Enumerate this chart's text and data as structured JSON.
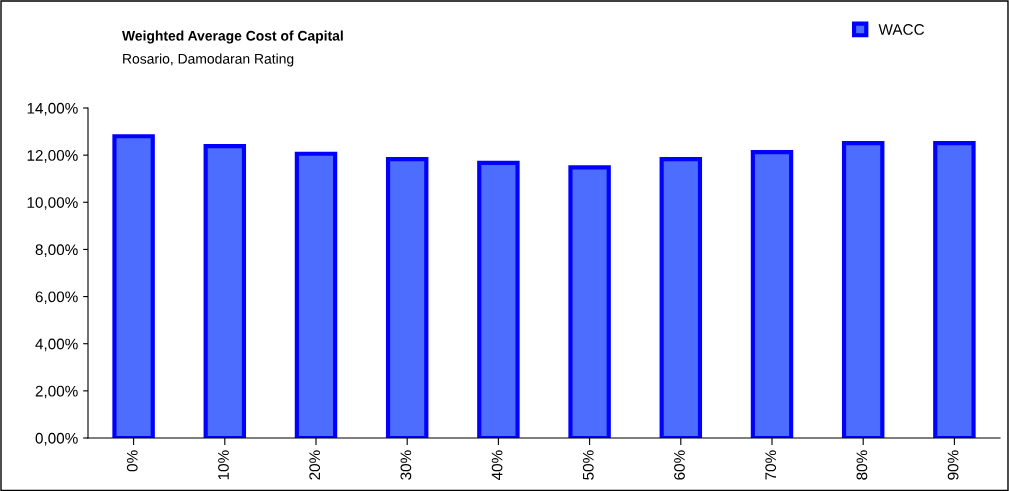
{
  "chart_data": {
    "type": "bar",
    "title": "Weighted Average Cost of Capital",
    "subtitle": "Rosario, Damodaran Rating",
    "categories": [
      "0%",
      "10%",
      "20%",
      "30%",
      "40%",
      "50%",
      "60%",
      "70%",
      "80%",
      "90%"
    ],
    "series": [
      {
        "name": "WACC",
        "color": "#4d6dff",
        "values": [
          12.8,
          12.38,
          12.06,
          11.83,
          11.67,
          11.48,
          11.83,
          12.13,
          12.51,
          12.51
        ]
      }
    ],
    "ylim": [
      0,
      14
    ],
    "yticks": [
      {
        "value": 0,
        "label": "0,00%"
      },
      {
        "value": 2,
        "label": "2,00%"
      },
      {
        "value": 4,
        "label": "4,00%"
      },
      {
        "value": 6,
        "label": "6,00%"
      },
      {
        "value": 8,
        "label": "8,00%"
      },
      {
        "value": 10,
        "label": "10,00%"
      },
      {
        "value": 12,
        "label": "12,00%"
      },
      {
        "value": 14,
        "label": "14,00%"
      }
    ],
    "grid": false,
    "legend": "top right"
  }
}
